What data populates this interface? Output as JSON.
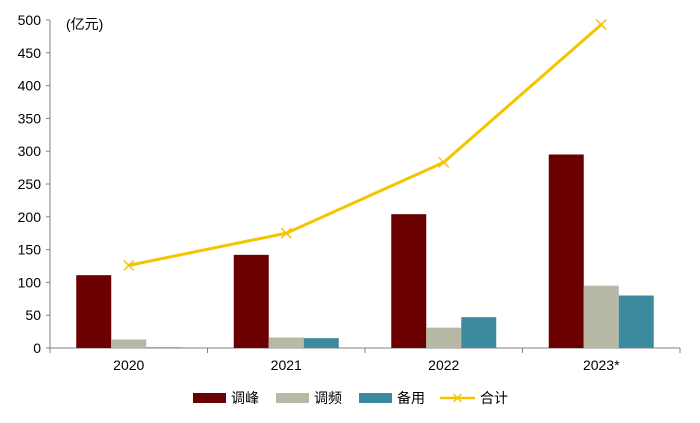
{
  "chart_data": {
    "type": "bar",
    "unit_label": "(亿元)",
    "categories": [
      "2020",
      "2021",
      "2022",
      "2023*"
    ],
    "ylim": [
      0,
      500
    ],
    "yticks": [
      0,
      50,
      100,
      150,
      200,
      250,
      300,
      350,
      400,
      450,
      500
    ],
    "grid": false,
    "legend_position": "bottom",
    "series": [
      {
        "name": "调峰",
        "type": "bar",
        "color": "#6b0000",
        "values": [
          111,
          142,
          204,
          295
        ]
      },
      {
        "name": "调频",
        "type": "bar",
        "color": "#b8b8a6",
        "values": [
          13,
          16,
          31,
          95
        ]
      },
      {
        "name": "备用",
        "type": "bar",
        "color": "#3b8a9e",
        "values": [
          1,
          15,
          47,
          80
        ]
      },
      {
        "name": "合计",
        "type": "line",
        "color": "#f5c400",
        "values": [
          126,
          175,
          283,
          493
        ]
      }
    ]
  }
}
